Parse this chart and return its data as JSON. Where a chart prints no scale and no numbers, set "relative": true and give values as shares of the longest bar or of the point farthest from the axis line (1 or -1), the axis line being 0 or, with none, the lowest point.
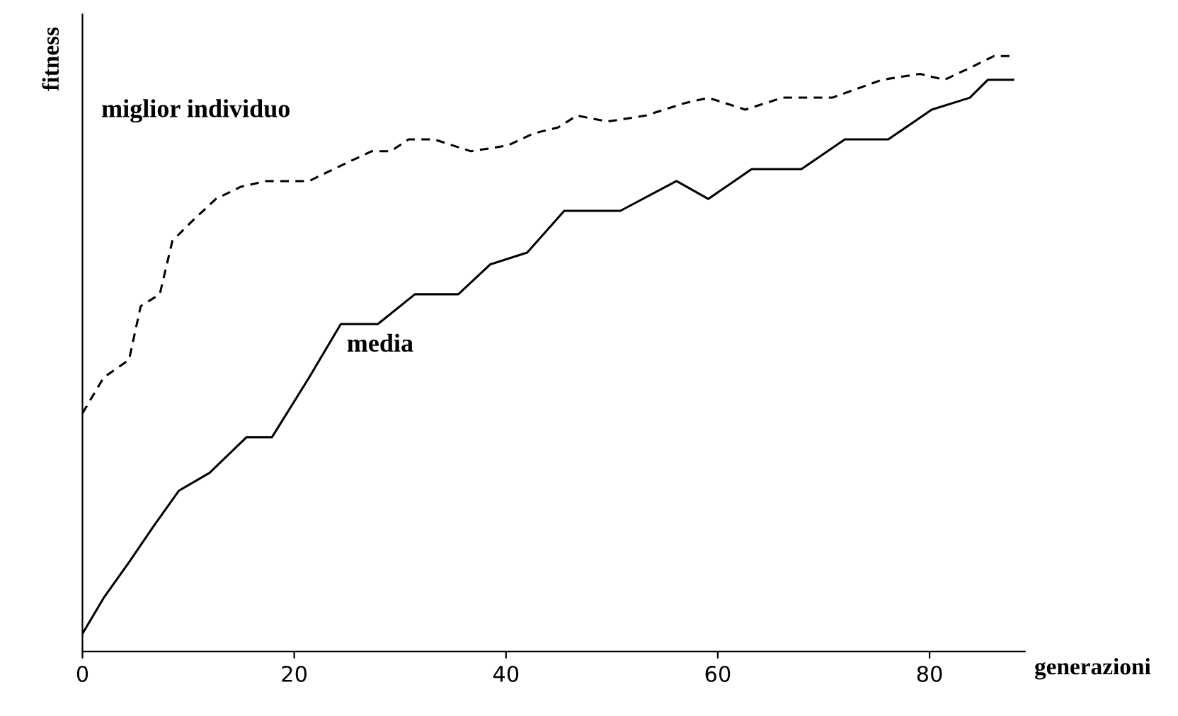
{
  "chart_data": {
    "type": "line",
    "relative": true,
    "xlabel": "generazioni",
    "ylabel": "fitness",
    "xlim": [
      0,
      89
    ],
    "xticks": [
      0,
      20,
      40,
      60,
      80
    ],
    "grid": false,
    "legend": false,
    "marker": "none",
    "series": [
      {
        "name": "miglior individuo",
        "color": "#000000",
        "line_style": "dashed",
        "x": [
          0,
          2.0,
          4.4,
          5.5,
          7.3,
          8.5,
          10.2,
          12.6,
          14.9,
          17.3,
          21.4,
          24.9,
          27.3,
          29.1,
          30.8,
          33.2,
          36.7,
          40.2,
          42.6,
          44.9,
          46.7,
          49.6,
          53.2,
          56.7,
          59.1,
          62.6,
          66.1,
          70.8,
          75.5,
          79.1,
          81.4,
          83.8,
          86.1,
          87.9
        ],
        "values": [
          0.4,
          0.46,
          0.49,
          0.58,
          0.6,
          0.69,
          0.72,
          0.76,
          0.78,
          0.79,
          0.79,
          0.82,
          0.84,
          0.84,
          0.86,
          0.86,
          0.84,
          0.85,
          0.87,
          0.88,
          0.9,
          0.89,
          0.9,
          0.92,
          0.93,
          0.91,
          0.93,
          0.93,
          0.96,
          0.97,
          0.96,
          0.98,
          1.0,
          1.0
        ]
      },
      {
        "name": "media",
        "color": "#000000",
        "line_style": "solid",
        "x": [
          0,
          2.0,
          4.4,
          6.7,
          9.1,
          12.0,
          15.5,
          17.9,
          21.4,
          24.4,
          27.9,
          31.4,
          35.5,
          38.5,
          42.0,
          45.5,
          50.8,
          56.1,
          59.1,
          63.2,
          67.9,
          72.0,
          76.1,
          80.2,
          83.8,
          85.5,
          87.9
        ],
        "values": [
          0.03,
          0.09,
          0.15,
          0.21,
          0.27,
          0.3,
          0.36,
          0.36,
          0.46,
          0.55,
          0.55,
          0.6,
          0.6,
          0.65,
          0.67,
          0.74,
          0.74,
          0.79,
          0.76,
          0.81,
          0.81,
          0.86,
          0.86,
          0.91,
          0.93,
          0.96,
          0.96
        ]
      }
    ]
  }
}
